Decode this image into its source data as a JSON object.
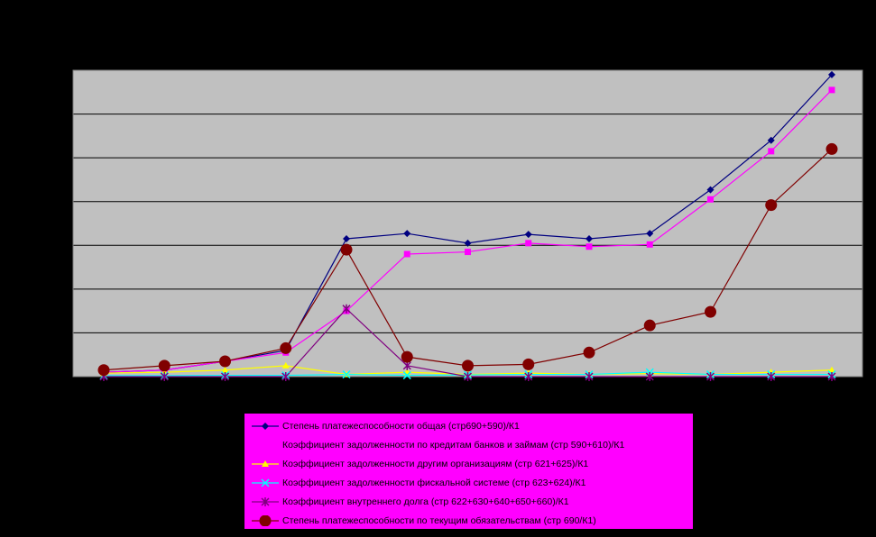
{
  "chart_data": {
    "type": "line",
    "ylim": [
      0,
      7
    ],
    "y_gridline_step": 1,
    "x_points": 13,
    "plot_background": "#c0c0c0",
    "grid": true,
    "legend_placement": "bottom",
    "series": [
      {
        "name": "Степень платежеспособности общая (стр690+590)/К1",
        "color": "#000080",
        "marker": "diamond",
        "values": [
          0.1,
          0.15,
          0.35,
          0.6,
          3.15,
          3.27,
          3.05,
          3.25,
          3.15,
          3.27,
          4.27,
          5.4,
          6.9
        ]
      },
      {
        "name": "Коэффициент задолженности по кредитам банков и займам (стр 590+610)/К1",
        "color": "#ff00ff",
        "marker": "square",
        "values": [
          0.1,
          0.15,
          0.35,
          0.55,
          1.5,
          2.8,
          2.85,
          3.05,
          2.97,
          3.02,
          4.05,
          5.15,
          6.55
        ]
      },
      {
        "name": "Коэффициент задолженности другим организациям (стр 621+625)/К1",
        "color": "#ffff00",
        "marker": "triangle",
        "values": [
          0.08,
          0.1,
          0.15,
          0.25,
          0.05,
          0.1,
          0.05,
          0.08,
          0.05,
          0.07,
          0.05,
          0.1,
          0.15
        ]
      },
      {
        "name": "Коэффициент задолженности фискальной системе (стр 623+624)/К1",
        "color": "#00ffff",
        "marker": "x",
        "values": [
          0.02,
          0.02,
          0.03,
          0.03,
          0.05,
          0.03,
          0.04,
          0.05,
          0.05,
          0.1,
          0.05,
          0.05,
          0.05
        ]
      },
      {
        "name": "Коэффициент внутреннего долга (стр 622+630+640+650+660)/К1",
        "color": "#800080",
        "marker": "star",
        "values": [
          0.0,
          0.0,
          0.0,
          0.0,
          1.55,
          0.25,
          0.0,
          0.0,
          0.0,
          0.0,
          0.0,
          0.0,
          0.0
        ]
      },
      {
        "name": "Степень платежеспособности по текущим обязательствам (стр 690/К1)",
        "color": "#800000",
        "marker": "circle",
        "values": [
          0.15,
          0.25,
          0.35,
          0.65,
          2.9,
          0.45,
          0.25,
          0.28,
          0.55,
          1.17,
          1.48,
          3.92,
          5.2
        ]
      }
    ]
  }
}
